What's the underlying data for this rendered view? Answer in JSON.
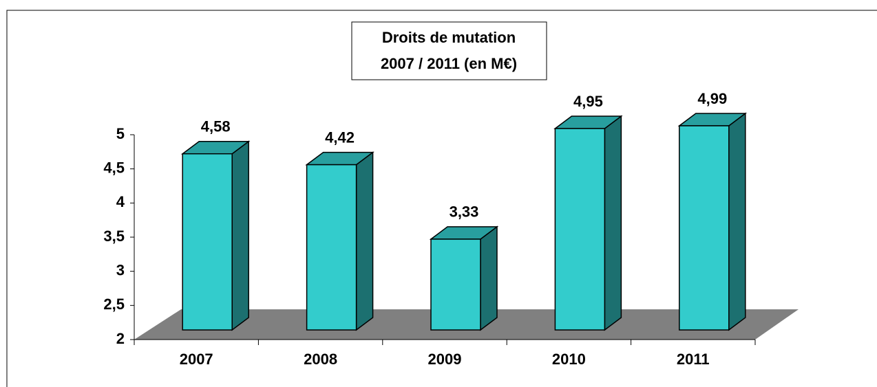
{
  "chart_data": {
    "type": "bar3d",
    "title": [
      "Droits de mutation",
      "2007 / 2011 (en M€)"
    ],
    "categories": [
      "2007",
      "2008",
      "2009",
      "2010",
      "2011"
    ],
    "values": [
      4.58,
      4.42,
      3.33,
      4.95,
      4.99
    ],
    "value_labels": [
      "4,58",
      "4,42",
      "3,33",
      "4,95",
      "4,99"
    ],
    "color": "#33cccc",
    "ylim": [
      2,
      5
    ],
    "yticks": [
      2,
      {
        "value": 2.5,
        "label": "2,5"
      },
      3,
      {
        "value": 3.5,
        "label": "3,5"
      },
      4,
      {
        "value": 4.5,
        "label": "4,5"
      },
      5
    ]
  }
}
